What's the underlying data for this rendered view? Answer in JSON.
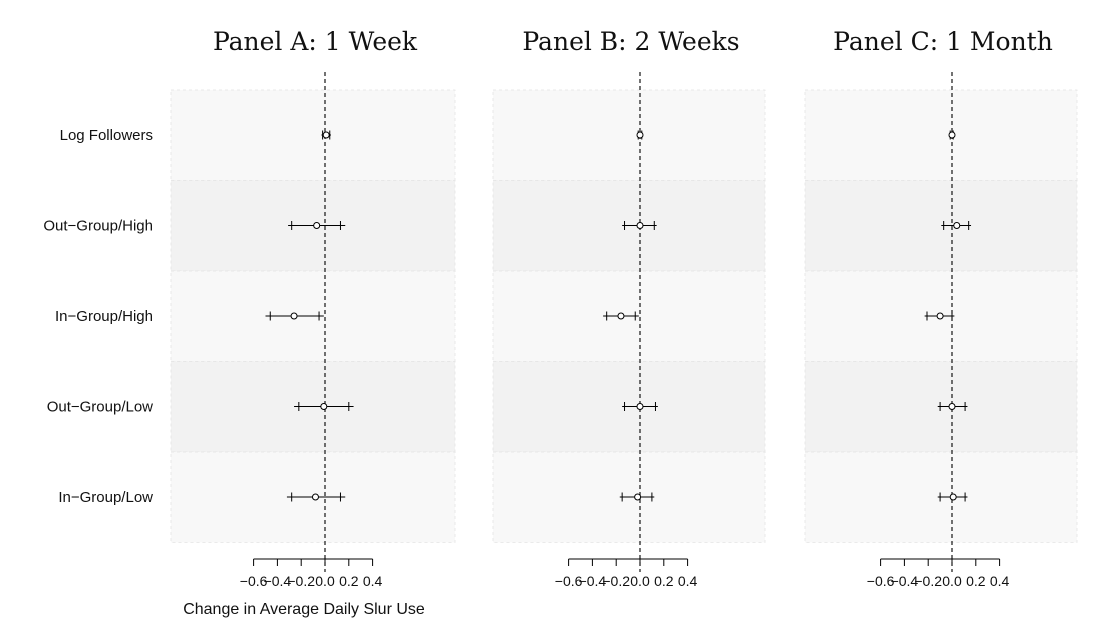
{
  "chart_data": {
    "type": "forest",
    "xlabel": "Change in Average Daily Slur Use",
    "xticks": [
      -0.6,
      -0.4,
      -0.2,
      0.0,
      0.2,
      0.4
    ],
    "xtick_labels": [
      "−0.6",
      "−0.4",
      "−0.2",
      "0.0",
      "0.2",
      "0.4"
    ],
    "xlim": [
      -0.66,
      0.55
    ],
    "reference_line": 0.0,
    "grid": false,
    "rows": [
      "Log Followers",
      "Out−Group/High",
      "In−Group/High",
      "Out−Group/Low",
      "In−Group/Low"
    ],
    "panels": [
      {
        "title": "Panel A: 1 Week",
        "points": [
          {
            "est": 0.01,
            "ci90": [
              -0.02,
              0.04
            ],
            "ci95": [
              -0.03,
              0.05
            ]
          },
          {
            "est": -0.07,
            "ci90": [
              -0.28,
              0.13
            ],
            "ci95": [
              -0.31,
              0.17
            ]
          },
          {
            "est": -0.26,
            "ci90": [
              -0.46,
              -0.05
            ],
            "ci95": [
              -0.5,
              -0.01
            ]
          },
          {
            "est": -0.01,
            "ci90": [
              -0.22,
              0.2
            ],
            "ci95": [
              -0.26,
              0.24
            ]
          },
          {
            "est": -0.08,
            "ci90": [
              -0.28,
              0.13
            ],
            "ci95": [
              -0.32,
              0.17
            ]
          }
        ]
      },
      {
        "title": "Panel B: 2 Weeks",
        "points": [
          {
            "est": 0.0,
            "ci90": [
              -0.015,
              0.015
            ],
            "ci95": [
              -0.02,
              0.02
            ]
          },
          {
            "est": 0.0,
            "ci90": [
              -0.13,
              0.12
            ],
            "ci95": [
              -0.15,
              0.14
            ]
          },
          {
            "est": -0.16,
            "ci90": [
              -0.28,
              -0.04
            ],
            "ci95": [
              -0.31,
              -0.01
            ]
          },
          {
            "est": 0.0,
            "ci90": [
              -0.13,
              0.13
            ],
            "ci95": [
              -0.15,
              0.15
            ]
          },
          {
            "est": -0.02,
            "ci90": [
              -0.15,
              0.1
            ],
            "ci95": [
              -0.17,
              0.12
            ]
          }
        ]
      },
      {
        "title": "Panel C: 1 Month",
        "points": [
          {
            "est": 0.0,
            "ci90": [
              -0.015,
              0.01
            ],
            "ci95": [
              -0.02,
              0.015
            ]
          },
          {
            "est": 0.04,
            "ci90": [
              -0.07,
              0.14
            ],
            "ci95": [
              -0.09,
              0.16
            ]
          },
          {
            "est": -0.1,
            "ci90": [
              -0.21,
              0.0
            ],
            "ci95": [
              -0.23,
              0.02
            ]
          },
          {
            "est": 0.0,
            "ci90": [
              -0.1,
              0.11
            ],
            "ci95": [
              -0.12,
              0.13
            ]
          },
          {
            "est": 0.01,
            "ci90": [
              -0.1,
              0.11
            ],
            "ci95": [
              -0.12,
              0.13
            ]
          }
        ]
      }
    ]
  }
}
